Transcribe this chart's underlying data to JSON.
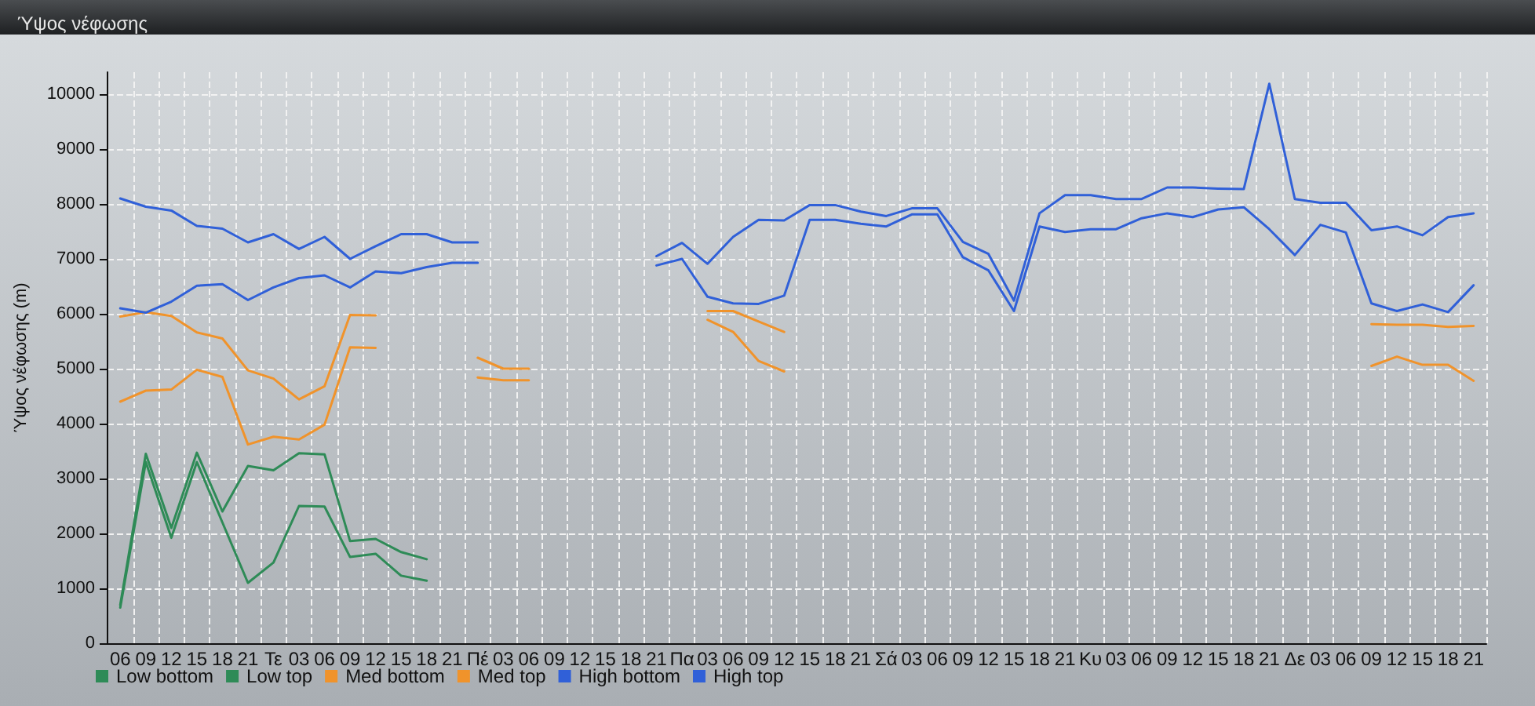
{
  "chart_data": {
    "type": "line",
    "title": "Ύψος νέφωσης",
    "ylabel": "Ύψος νέφωσης (m)",
    "categories": [
      "06",
      "09",
      "12",
      "15",
      "18",
      "21",
      "Τε",
      "03",
      "06",
      "09",
      "12",
      "15",
      "18",
      "21",
      "Πέ",
      "03",
      "06",
      "09",
      "12",
      "15",
      "18",
      "21",
      "Πα",
      "03",
      "06",
      "09",
      "12",
      "15",
      "18",
      "21",
      "Σά",
      "03",
      "06",
      "09",
      "12",
      "15",
      "18",
      "21",
      "Κυ",
      "03",
      "06",
      "09",
      "12",
      "15",
      "18",
      "21",
      "Δε",
      "03",
      "06",
      "09",
      "12",
      "15",
      "18",
      "21"
    ],
    "series": [
      {
        "name": "Low bottom",
        "color": "#2e8b57",
        "values": [
          650,
          3300,
          1920,
          3300,
          2200,
          1100,
          1470,
          2500,
          2490,
          1570,
          1630,
          1230,
          1140,
          null,
          null,
          null,
          null,
          null,
          null,
          null,
          null,
          null,
          null,
          null,
          null,
          null,
          null,
          null,
          null,
          null,
          null,
          null,
          null,
          null,
          null,
          null,
          null,
          null,
          null,
          null,
          null,
          null,
          null,
          null,
          null,
          null,
          null,
          null,
          null,
          null,
          null,
          null,
          null,
          null
        ]
      },
      {
        "name": "Low top",
        "color": "#2e8b57",
        "values": [
          700,
          3450,
          2100,
          3470,
          2400,
          3230,
          3150,
          3460,
          3440,
          1860,
          1900,
          1660,
          1530,
          null,
          null,
          null,
          null,
          null,
          null,
          null,
          null,
          null,
          null,
          null,
          null,
          null,
          null,
          null,
          null,
          null,
          null,
          null,
          null,
          null,
          null,
          null,
          null,
          null,
          null,
          null,
          null,
          null,
          null,
          null,
          null,
          null,
          null,
          null,
          null,
          null,
          null,
          null,
          null,
          null
        ]
      },
      {
        "name": "Med bottom",
        "color": "#f0932b",
        "values": [
          4400,
          4600,
          4620,
          4980,
          4850,
          3620,
          3760,
          3710,
          3980,
          5390,
          5380,
          null,
          null,
          null,
          4840,
          4790,
          4790,
          null,
          null,
          null,
          null,
          null,
          null,
          5890,
          5670,
          5140,
          4950,
          null,
          null,
          null,
          null,
          null,
          null,
          null,
          null,
          null,
          null,
          null,
          null,
          null,
          null,
          null,
          null,
          null,
          null,
          null,
          null,
          null,
          null,
          5050,
          5220,
          5070,
          5070,
          4780
        ]
      },
      {
        "name": "Med top",
        "color": "#f0932b",
        "values": [
          5950,
          6030,
          5960,
          5660,
          5550,
          4970,
          4820,
          4440,
          4680,
          5980,
          5970,
          null,
          null,
          null,
          5200,
          5000,
          5000,
          null,
          null,
          null,
          null,
          null,
          null,
          6050,
          6050,
          5860,
          5670,
          null,
          null,
          null,
          null,
          null,
          null,
          null,
          null,
          null,
          null,
          null,
          null,
          null,
          null,
          null,
          null,
          null,
          null,
          null,
          null,
          null,
          null,
          5810,
          5800,
          5800,
          5760,
          5780
        ]
      },
      {
        "name": "High bottom",
        "color": "#3060d8",
        "values": [
          6100,
          6020,
          6220,
          6510,
          6540,
          6250,
          6480,
          6650,
          6700,
          6480,
          6770,
          6740,
          6850,
          6930,
          6930,
          null,
          null,
          null,
          null,
          null,
          null,
          6880,
          7000,
          6310,
          6190,
          6180,
          6330,
          7710,
          7710,
          7640,
          7590,
          7810,
          7810,
          7030,
          6790,
          6050,
          7590,
          7490,
          7540,
          7540,
          7740,
          7830,
          7760,
          7900,
          7940,
          7540,
          7070,
          7620,
          7480,
          6190,
          6050,
          6170,
          6030,
          6520
        ]
      },
      {
        "name": "High top",
        "color": "#3060d8",
        "values": [
          8100,
          7950,
          7880,
          7600,
          7550,
          7300,
          7450,
          7180,
          7400,
          7000,
          7230,
          7450,
          7450,
          7300,
          7300,
          null,
          null,
          null,
          null,
          null,
          null,
          7050,
          7290,
          6910,
          7400,
          7710,
          7700,
          7980,
          7980,
          7860,
          7780,
          7920,
          7920,
          7310,
          7090,
          6240,
          7830,
          8160,
          8160,
          8090,
          8090,
          8300,
          8300,
          8280,
          8270,
          10190,
          8090,
          8020,
          8020,
          7520,
          7590,
          7430,
          7760,
          7830
        ]
      }
    ],
    "ylim": [
      0,
      10400
    ],
    "yticks": [
      0,
      1000,
      2000,
      3000,
      4000,
      5000,
      6000,
      7000,
      8000,
      9000,
      10000
    ],
    "grid": true,
    "legend": "bottom left",
    "marker": "none",
    "line_style": "solid"
  }
}
